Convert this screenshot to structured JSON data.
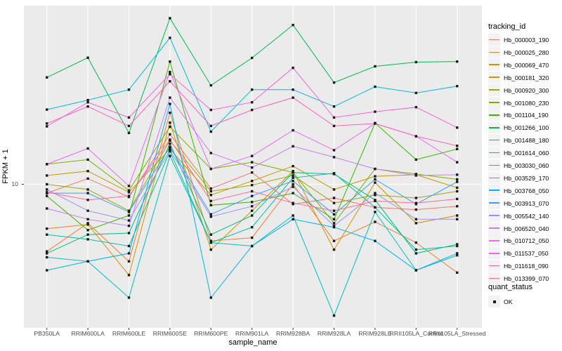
{
  "axes": {
    "y_label": "FPKM + 1",
    "x_label": "sample_name",
    "y_tick": "10"
  },
  "legend": {
    "tracking_title": "tracking_id",
    "quant_title": "quant_status",
    "quant_ok_label": "OK"
  },
  "style": {
    "panel_bg": "#EBEBEB",
    "grid_color": "#FFFFFF",
    "point_color": "#1a1a1a",
    "tick_color": "#333333"
  },
  "chart_data": {
    "type": "line",
    "title": "",
    "xlabel": "sample_name",
    "ylabel": "FPKM + 1",
    "y_scale": "log10",
    "y_ticks": [
      10
    ],
    "ylim": [
      1.8,
      80
    ],
    "grid": true,
    "legend_position": "right",
    "point_shape": "filled-black-square",
    "categories": [
      "PB350LA",
      "RRIM600LA",
      "RRIM600LE",
      "RRIM600SE",
      "RRIM600PE",
      "RRIM901LA",
      "RRIM928BA",
      "RRIM928LA",
      "RRIM928LE",
      "RRII105LA_Control",
      "RRII105LA_Stressed"
    ],
    "series": [
      {
        "name": "Hb_000003_190",
        "color": "#F8766D",
        "values": [
          9.0,
          10.7,
          8.6,
          18.1,
          9.5,
          11.5,
          7.9,
          8.5,
          7.6,
          7.4,
          7.7
        ]
      },
      {
        "name": "Hb_000025_280",
        "color": "#EA8331",
        "values": [
          4.5,
          6.3,
          4.0,
          23.4,
          5.1,
          5.3,
          10.0,
          5.1,
          6.4,
          5.0,
          3.5
        ]
      },
      {
        "name": "Hb_000069_470",
        "color": "#D89000",
        "values": [
          5.9,
          6.2,
          3.4,
          20.8,
          4.6,
          7.3,
          11.7,
          4.6,
          10.2,
          6.3,
          6.9
        ]
      },
      {
        "name": "Hb_000181_320",
        "color": "#C09B00",
        "values": [
          11.1,
          11.7,
          9.1,
          15.2,
          8.8,
          10.4,
          12.4,
          9.4,
          11.0,
          11.2,
          9.6
        ]
      },
      {
        "name": "Hb_000920_300",
        "color": "#A3A500",
        "values": [
          10.0,
          9.4,
          7.3,
          16.8,
          9.2,
          9.9,
          11.1,
          8.0,
          8.8,
          8.5,
          9.2
        ]
      },
      {
        "name": "Hb_001080_230",
        "color": "#7CAE00",
        "values": [
          12.7,
          13.4,
          9.3,
          19.8,
          12.0,
          13.0,
          11.5,
          6.3,
          12.0,
          11.3,
          10.6
        ]
      },
      {
        "name": "Hb_001104_190",
        "color": "#39B600",
        "values": [
          8.7,
          5.8,
          6.9,
          43.0,
          7.8,
          8.1,
          9.0,
          6.6,
          20.7,
          13.4,
          15.2
        ]
      },
      {
        "name": "Hb_001266_100",
        "color": "#00BB4E",
        "values": [
          35.6,
          45.0,
          18.4,
          72.0,
          32.4,
          44.9,
          66.4,
          33.5,
          40.6,
          42.7,
          43.0
        ]
      },
      {
        "name": "Hb_001488_180",
        "color": "#00BF7D",
        "values": [
          4.4,
          5.5,
          5.6,
          16.2,
          5.5,
          6.9,
          11.5,
          11.3,
          8.3,
          4.4,
          4.9
        ]
      },
      {
        "name": "Hb_001614_060",
        "color": "#00C1A3",
        "values": [
          5.5,
          5.2,
          4.8,
          14.8,
          5.0,
          6.0,
          10.8,
          11.4,
          7.6,
          4.6,
          4.8
        ]
      },
      {
        "name": "Hb_003030_060",
        "color": "#00BFC4",
        "values": [
          4.2,
          4.0,
          2.6,
          14.0,
          5.0,
          4.8,
          6.9,
          2.1,
          7.2,
          3.6,
          4.3
        ]
      },
      {
        "name": "Hb_003529_170",
        "color": "#00BAE0",
        "values": [
          24.3,
          27.2,
          30.8,
          57.0,
          18.7,
          30.8,
          30.8,
          25.2,
          31.9,
          29.6,
          32.1
        ]
      },
      {
        "name": "Hb_003768_050",
        "color": "#00B0F6",
        "values": [
          3.6,
          4.0,
          4.4,
          26.0,
          2.6,
          4.8,
          6.6,
          6.0,
          5.1,
          3.6,
          4.4
        ]
      },
      {
        "name": "Hb_003913_070",
        "color": "#35A2FF",
        "values": [
          9.0,
          9.0,
          7.2,
          15.6,
          7.0,
          8.7,
          10.4,
          7.0,
          10.6,
          7.9,
          10.3
        ]
      },
      {
        "name": "Hb_005542_140",
        "color": "#9590FF",
        "values": [
          9.4,
          7.3,
          6.5,
          15.0,
          6.8,
          7.7,
          9.7,
          6.1,
          9.0,
          6.6,
          6.6
        ]
      },
      {
        "name": "Hb_006520_040",
        "color": "#C77CFF",
        "values": [
          7.5,
          6.6,
          6.1,
          28.0,
          14.5,
          12.2,
          15.7,
          13.8,
          12.0,
          11.1,
          11.2
        ]
      },
      {
        "name": "Hb_010712_050",
        "color": "#E76BF3",
        "values": [
          12.7,
          15.3,
          9.8,
          38.0,
          12.0,
          14.0,
          19.0,
          15.0,
          20.6,
          17.7,
          13.0
        ]
      },
      {
        "name": "Hb_011537_050",
        "color": "#FA62DB",
        "values": [
          19.9,
          26.5,
          22.1,
          37.0,
          24.2,
          26.5,
          39.9,
          22.1,
          23.7,
          25.0,
          19.6
        ]
      },
      {
        "name": "Hb_011618_090",
        "color": "#FF62BC",
        "values": [
          20.6,
          25.2,
          20.0,
          34.0,
          20.0,
          24.2,
          28.0,
          20.0,
          20.6,
          17.7,
          15.8
        ]
      },
      {
        "name": "Hb_013399_070",
        "color": "#FF6A98",
        "values": [
          9.1,
          8.3,
          8.7,
          17.0,
          8.2,
          9.2,
          8.0,
          7.3,
          8.2,
          8.0,
          8.4
        ]
      }
    ],
    "quant_status_values": [
      "OK"
    ]
  }
}
